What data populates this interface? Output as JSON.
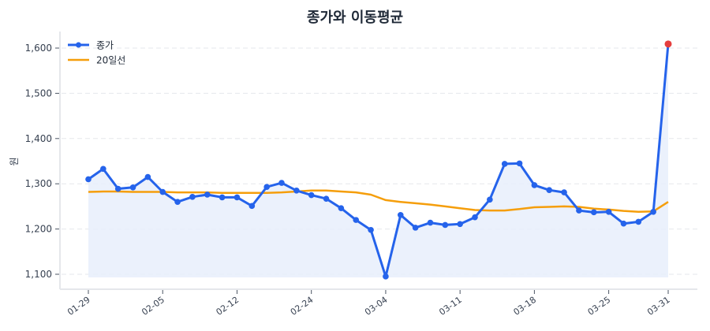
{
  "chart_data": {
    "type": "line",
    "title": "종가와 이동평균",
    "xlabel": "",
    "ylabel": "원",
    "ylim": [
      1075,
      1635
    ],
    "yticks": [
      1100,
      1200,
      1300,
      1400,
      1500,
      1600
    ],
    "ytick_labels": [
      "1,100",
      "1,200",
      "1,300",
      "1,400",
      "1,500",
      "1,600"
    ],
    "xtick_indices": [
      0,
      5,
      10,
      15,
      20,
      25,
      30,
      35,
      39
    ],
    "xtick_labels": [
      "01-29",
      "02-05",
      "02-12",
      "02-24",
      "03-04",
      "03-11",
      "03-18",
      "03-25",
      "03-31"
    ],
    "grid": "horizontal dashed",
    "legend_position": "upper left",
    "series": [
      {
        "name": "종가",
        "color": "#2563eb",
        "markers": true,
        "fill": "#e8eefc",
        "values": [
          1310,
          1333,
          1289,
          1292,
          1315,
          1282,
          1260,
          1271,
          1276,
          1270,
          1270,
          1251,
          1293,
          1302,
          1285,
          1275,
          1267,
          1246,
          1220,
          1198,
          1095,
          1231,
          1203,
          1214,
          1209,
          1211,
          1226,
          1265,
          1344,
          1345,
          1297,
          1286,
          1281,
          1241,
          1237,
          1238,
          1212,
          1216,
          1238,
          1609
        ]
      },
      {
        "name": "20일선",
        "color": "#f59e0b",
        "markers": false,
        "values": [
          1282,
          1283,
          1283,
          1282,
          1282,
          1282,
          1281,
          1281,
          1281,
          1280,
          1280,
          1280,
          1280,
          1281,
          1283,
          1285,
          1285,
          1283,
          1281,
          1276,
          1264,
          1260,
          1257,
          1254,
          1250,
          1246,
          1242,
          1241,
          1241,
          1244,
          1248,
          1249,
          1250,
          1249,
          1245,
          1243,
          1240,
          1238,
          1239,
          1260
        ]
      }
    ],
    "highlight_last_point": {
      "color": "#e53e3e",
      "value": 1609,
      "label": "03-31"
    }
  },
  "legend": {
    "items": [
      {
        "label": "종가"
      },
      {
        "label": "20일선"
      }
    ]
  }
}
